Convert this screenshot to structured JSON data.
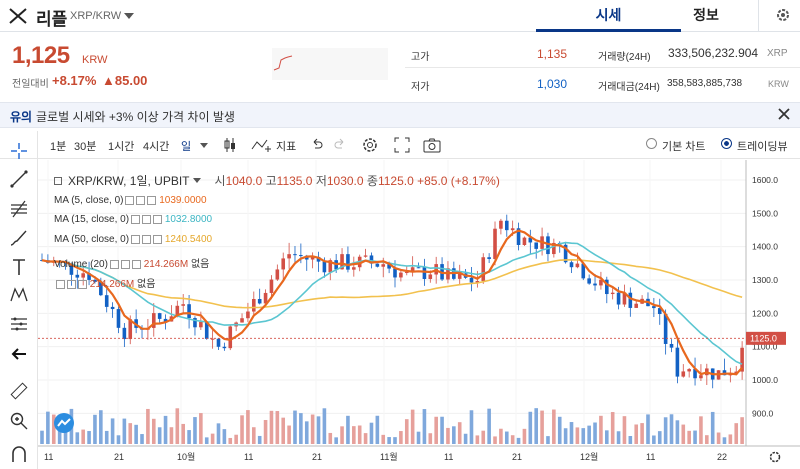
{
  "header": {
    "coin_name": "리플",
    "pair": "XRP/KRW",
    "tab_price": "시세",
    "tab_info": "정보"
  },
  "ticker": {
    "price": "1,125",
    "price_unit": "KRW",
    "change_label": "전일대비",
    "change_pct": "+8.17%",
    "change_amt": "▲85.00",
    "high_label": "고가",
    "high": "1,135",
    "low_label": "저가",
    "low": "1,030",
    "vol_label": "거래량(24H)",
    "vol": "333,506,232.904",
    "vol_unit": "XRP",
    "amt_label": "거래대금(24H)",
    "amt": "358,583,885,738",
    "amt_unit": "KRW"
  },
  "notice": {
    "tag": "유의",
    "text": "글로벌 시세와 +3% 이상 가격 차이 발생"
  },
  "toolbar": {
    "i1": "1분",
    "i2": "30분",
    "i3": "1시간",
    "i4": "4시간",
    "i5": "일",
    "indicator": "지표",
    "basic": "기본 차트",
    "tradingview": "트레이딩뷰"
  },
  "legend": {
    "title": "XRP/KRW, 1일, UPBIT",
    "o_l": "시",
    "o": "1040.0",
    "h_l": "고",
    "h": "1135.0",
    "l_l": "저",
    "l": "1030.0",
    "c_l": "종",
    "c": "1125.0",
    "chg": "+85.0 (+8.17%)",
    "ma5": "MA (5, close, 0)",
    "ma5v": "1039.0000",
    "ma15": "MA (15, close, 0)",
    "ma15v": "1032.8000",
    "ma50": "MA (50, close, 0)",
    "ma50v": "1240.5400",
    "vol": "Volume (20)",
    "volv": "214.266M",
    "volu": "없음",
    "volma": "",
    "volmav": "214.266M",
    "volmau": "없음"
  },
  "chart_data": {
    "type": "candlestick",
    "ylim": [
      850,
      1650
    ],
    "yticks": [
      "1600.0",
      "1500.0",
      "1400.0",
      "1300.0",
      "1200.0",
      "1100.0",
      "1000.0",
      "900.0"
    ],
    "last_price_label": "1125.0",
    "xticks": [
      "11",
      "21",
      "10월",
      "11",
      "21",
      "11월",
      "11",
      "21",
      "12월",
      "11",
      "22"
    ]
  },
  "colors": {
    "up": "#d24f45",
    "down": "#1261c4",
    "ma5": "#e8681e",
    "ma15": "#5bc6d1",
    "ma50": "#f2c14e",
    "vol_up": "#e6a09b",
    "vol_down": "#7fa8dc"
  }
}
